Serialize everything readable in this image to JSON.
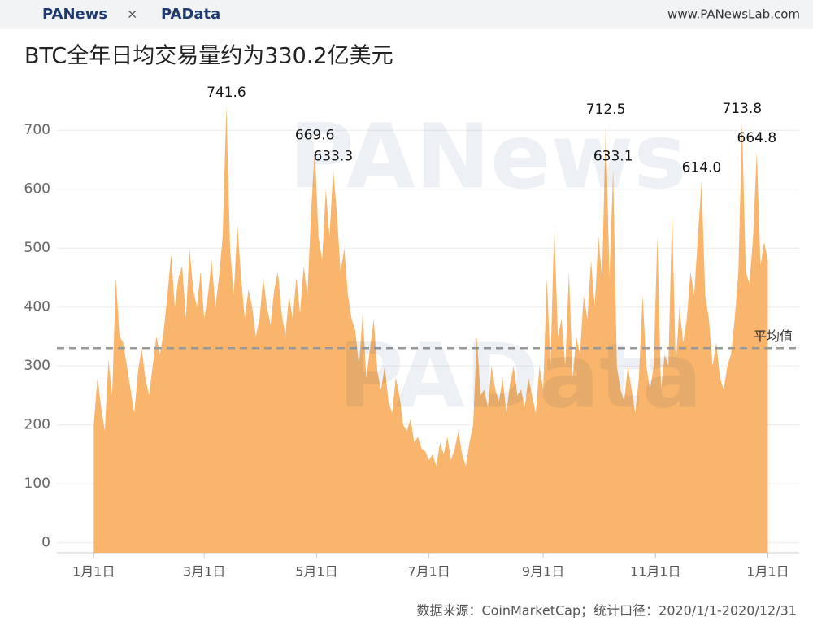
{
  "header": {
    "brand1": "PANews",
    "times": "×",
    "brand2": "PAData",
    "site": "www.PANewsLab.com"
  },
  "watermarks": [
    "PANews",
    "PAData"
  ],
  "chart_data": {
    "type": "area",
    "title": "BTC全年日均交易量约为330.2亿美元",
    "source": "数据来源：CoinMarketCap；统计口径：2020/1/1-2020/12/31",
    "color": "#f8b56b",
    "grid": true,
    "xlim": [
      -20,
      383
    ],
    "ylim": [
      -17,
      790
    ],
    "xticks": [
      {
        "value": 0,
        "label": "1月1日"
      },
      {
        "value": 60,
        "label": "3月1日"
      },
      {
        "value": 121,
        "label": "5月1日"
      },
      {
        "value": 182,
        "label": "7月1日"
      },
      {
        "value": 244,
        "label": "9月1日"
      },
      {
        "value": 305,
        "label": "11月1日"
      },
      {
        "value": 366,
        "label": "1月1日"
      }
    ],
    "yticks": [
      0,
      100,
      200,
      300,
      400,
      500,
      600,
      700
    ],
    "avg_line": {
      "value": 330.2,
      "label": "平均值"
    },
    "x": [
      0,
      2,
      4,
      6,
      8,
      10,
      12,
      14,
      16,
      18,
      20,
      22,
      24,
      26,
      28,
      30,
      32,
      34,
      36,
      38,
      40,
      42,
      44,
      46,
      48,
      50,
      52,
      54,
      56,
      58,
      60,
      62,
      64,
      66,
      68,
      70,
      72,
      74,
      76,
      78,
      80,
      82,
      84,
      86,
      88,
      90,
      92,
      94,
      96,
      98,
      100,
      102,
      104,
      106,
      108,
      110,
      112,
      114,
      116,
      118,
      120,
      122,
      124,
      126,
      128,
      130,
      132,
      134,
      136,
      138,
      140,
      142,
      144,
      146,
      148,
      150,
      152,
      154,
      156,
      158,
      160,
      162,
      164,
      166,
      168,
      170,
      172,
      174,
      176,
      178,
      180,
      182,
      184,
      186,
      188,
      190,
      192,
      194,
      196,
      198,
      200,
      202,
      204,
      206,
      208,
      210,
      212,
      214,
      216,
      218,
      220,
      222,
      224,
      226,
      228,
      230,
      232,
      234,
      236,
      238,
      240,
      242,
      244,
      246,
      248,
      250,
      252,
      254,
      256,
      258,
      260,
      262,
      264,
      266,
      268,
      270,
      272,
      274,
      276,
      278,
      280,
      282,
      284,
      286,
      288,
      290,
      292,
      294,
      296,
      298,
      300,
      302,
      304,
      306,
      308,
      310,
      312,
      314,
      316,
      318,
      320,
      322,
      324,
      326,
      328,
      330,
      332,
      334,
      336,
      338,
      340,
      342,
      344,
      346,
      348,
      350,
      352,
      354,
      356,
      358,
      360,
      362,
      364,
      366
    ],
    "values": [
      200,
      280,
      230,
      190,
      310,
      250,
      450,
      350,
      340,
      300,
      260,
      220,
      290,
      330,
      280,
      250,
      300,
      350,
      320,
      360,
      420,
      490,
      400,
      450,
      470,
      380,
      500,
      430,
      400,
      460,
      380,
      420,
      480,
      400,
      450,
      520,
      741.6,
      500,
      420,
      540,
      450,
      380,
      430,
      400,
      350,
      380,
      450,
      400,
      370,
      430,
      460,
      390,
      350,
      420,
      380,
      450,
      390,
      470,
      420,
      560,
      669.6,
      520,
      480,
      600,
      520,
      633.3,
      560,
      460,
      500,
      420,
      380,
      360,
      300,
      390,
      280,
      330,
      380,
      290,
      260,
      300,
      240,
      220,
      280,
      250,
      200,
      190,
      210,
      170,
      180,
      160,
      155,
      140,
      150,
      130,
      170,
      150,
      180,
      140,
      160,
      190,
      150,
      130,
      170,
      200,
      350,
      250,
      260,
      230,
      300,
      260,
      240,
      280,
      220,
      270,
      300,
      250,
      260,
      230,
      280,
      250,
      220,
      300,
      260,
      450,
      300,
      540,
      350,
      380,
      300,
      460,
      280,
      350,
      320,
      420,
      380,
      480,
      400,
      520,
      450,
      712.5,
      450,
      633.1,
      300,
      260,
      240,
      300,
      260,
      220,
      280,
      420,
      300,
      260,
      300,
      520,
      260,
      320,
      300,
      560,
      300,
      400,
      340,
      380,
      460,
      420,
      520,
      614,
      420,
      380,
      300,
      340,
      280,
      260,
      300,
      320,
      380,
      460,
      713.8,
      460,
      440,
      520,
      664.8,
      470,
      510,
      480
    ],
    "value_labels": [
      null,
      null,
      null,
      null,
      null,
      null,
      null,
      null,
      null,
      null,
      null,
      null,
      null,
      null,
      null,
      null,
      null,
      null,
      null,
      null,
      null,
      null,
      null,
      null,
      null,
      null,
      null,
      null,
      null,
      null,
      null,
      null,
      null,
      null,
      null,
      null,
      "741.6",
      null,
      null,
      null,
      null,
      null,
      null,
      null,
      null,
      null,
      null,
      null,
      null,
      null,
      null,
      null,
      null,
      null,
      null,
      null,
      null,
      null,
      null,
      null,
      "669.6",
      null,
      null,
      null,
      null,
      "633.3",
      null,
      null,
      null,
      null,
      null,
      null,
      null,
      null,
      null,
      null,
      null,
      null,
      null,
      null,
      null,
      null,
      null,
      null,
      null,
      null,
      null,
      null,
      null,
      null,
      null,
      null,
      null,
      null,
      null,
      null,
      null,
      null,
      null,
      null,
      null,
      null,
      null,
      null,
      null,
      null,
      null,
      null,
      null,
      null,
      null,
      null,
      null,
      null,
      null,
      null,
      null,
      null,
      null,
      null,
      null,
      null,
      null,
      null,
      null,
      null,
      null,
      null,
      null,
      null,
      null,
      null,
      null,
      null,
      null,
      null,
      null,
      null,
      null,
      "712.5",
      null,
      "633.1",
      null,
      null,
      null,
      null,
      null,
      null,
      null,
      null,
      null,
      null,
      null,
      null,
      null,
      null,
      null,
      null,
      null,
      null,
      null,
      null,
      null,
      null,
      null,
      "614.0",
      null,
      null,
      null,
      null,
      null,
      null,
      null,
      null,
      null,
      null,
      "713.8",
      null,
      null,
      null,
      "664.8",
      null,
      null,
      null
    ]
  }
}
